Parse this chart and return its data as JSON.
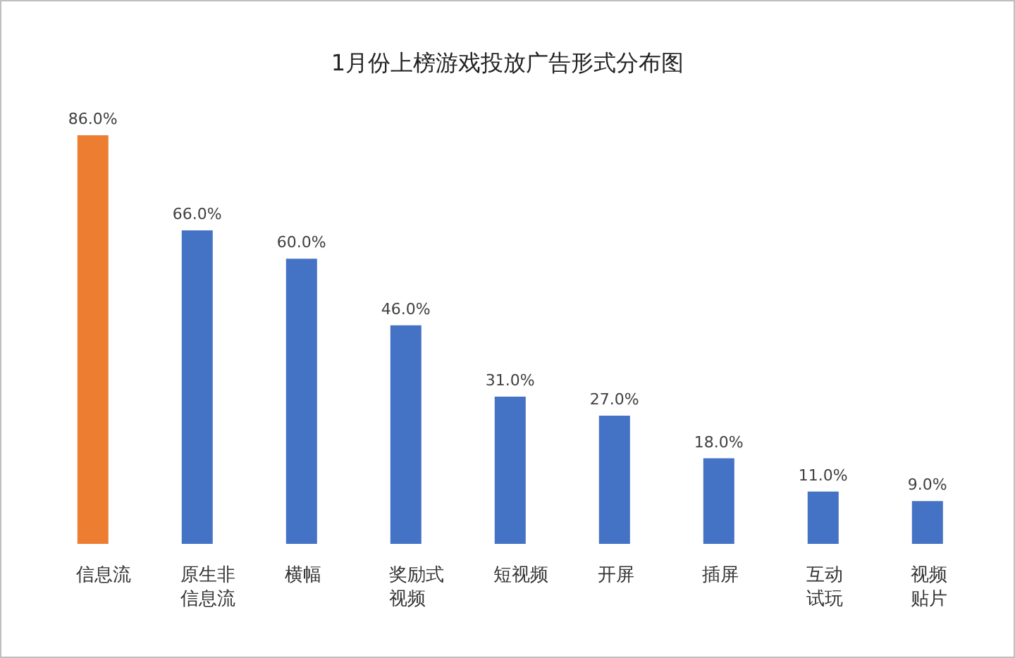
{
  "chart_data": {
    "type": "bar",
    "title": "1月份上榜游戏投放广告形式分布图",
    "categories": [
      "信息流",
      "原生非信息流",
      "横幅",
      "奖励式视频",
      "短视频",
      "开屏",
      "插屏",
      "互动试玩",
      "视频贴片"
    ],
    "values": [
      86,
      66,
      60,
      46,
      31,
      27,
      18,
      11,
      9
    ],
    "colors": [
      "#ed7d31",
      "#4472c4",
      "#4472c4",
      "#4472c4",
      "#4472c4",
      "#4472c4",
      "#4472c4",
      "#4472c4",
      "#4472c4"
    ],
    "value_labels": [
      "86.0%",
      "66.0%",
      "60.0%",
      "46.0%",
      "31.0%",
      "27.0%",
      "18.0%",
      "11.0%",
      "9.0%"
    ],
    "grid": false,
    "legend": false
  }
}
